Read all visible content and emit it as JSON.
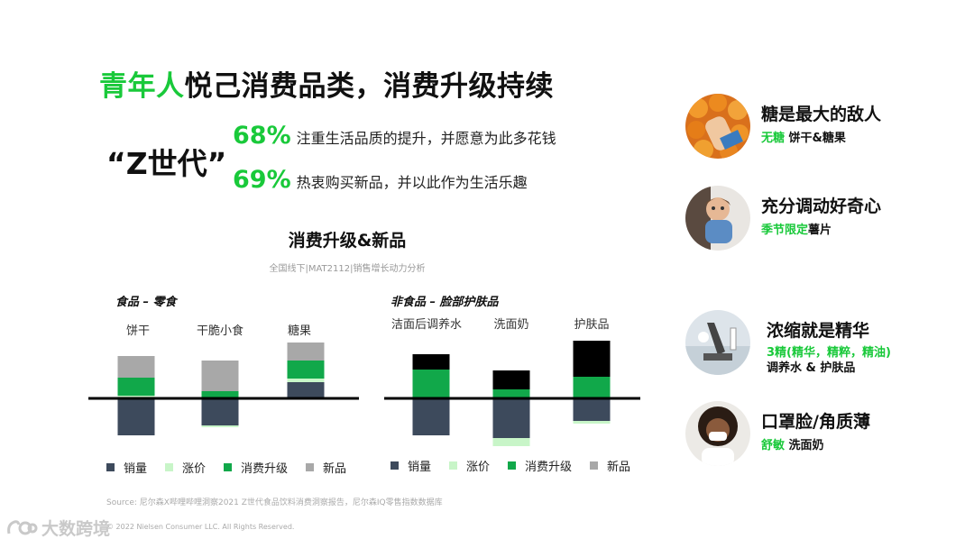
{
  "title": {
    "highlight": "青年人",
    "rest": "悦己消费品类，消费升级持续"
  },
  "zgen": "“Z世代”",
  "stats": [
    {
      "pct": "68%",
      "text": "注重生活品质的提升，并愿意为此多花钱"
    },
    {
      "pct": "69%",
      "text": "热衷购买新品，并以此作为生活乐趣"
    }
  ],
  "colors": {
    "accent": "#19c93a",
    "volume": "#3d4a5c",
    "price": "#c8f5c8",
    "upgrade": "#11a84a",
    "new": "#a8a8a8",
    "black": "#000000"
  },
  "chart_data": {
    "type": "bar",
    "title": "消费升级&新品",
    "subtitle": "全国线下|MAT2112|销售增长动力分析",
    "legend": [
      "销量",
      "涨价",
      "消费升级",
      "新品"
    ],
    "panels": [
      {
        "title": "食品 – 零食",
        "categories": [
          "饼干",
          "干脆小食",
          "糖果"
        ],
        "series": [
          {
            "name": "销量",
            "values": [
              -41,
              -30,
              18
            ]
          },
          {
            "name": "涨价",
            "values": [
              3,
              -2,
              4
            ]
          },
          {
            "name": "消费升级",
            "values": [
              20,
              8,
              20
            ]
          },
          {
            "name": "新品",
            "values": [
              24,
              34,
              20
            ]
          }
        ],
        "extra_black": [
          0,
          0,
          0
        ]
      },
      {
        "title": "非食品 – 脸部护肤品",
        "categories": [
          "洁面后调养水",
          "洗面奶",
          "护肤品"
        ],
        "series": [
          {
            "name": "销量",
            "values": [
              -41,
              -44,
              -25
            ]
          },
          {
            "name": "涨价",
            "values": [
              0,
              -9,
              -3
            ]
          },
          {
            "name": "消费升级",
            "values": [
              32,
              10,
              24
            ]
          },
          {
            "name": "新品",
            "values": [
              0,
              0,
              0
            ]
          }
        ],
        "extra_black": [
          17,
          21,
          40
        ]
      }
    ]
  },
  "cards": [
    {
      "head": "糖是最大的敌人",
      "sub_green": "无糖",
      "sub_rest": " 饼干&糖果"
    },
    {
      "head": "充分调动好奇心",
      "sub_green": "季节限定",
      "sub_rest": "薯片"
    },
    {
      "head": "浓缩就是精华",
      "sub_green": "3精(精华，精粹，精油)",
      "sub_rest": "调养水 & 护肤品"
    },
    {
      "head": "口罩脸/角质薄",
      "sub_green": "舒敏",
      "sub_rest": " 洗面奶"
    }
  ],
  "source": "Source: 尼尔森X哔哩哔哩洞察2021 Z世代食品饮料消费洞察报告，尼尔森IQ零售指数数据库",
  "copyright": "© 2022 Nielsen Consumer LLC. All Rights Reserved.",
  "watermark": "大数跨境"
}
